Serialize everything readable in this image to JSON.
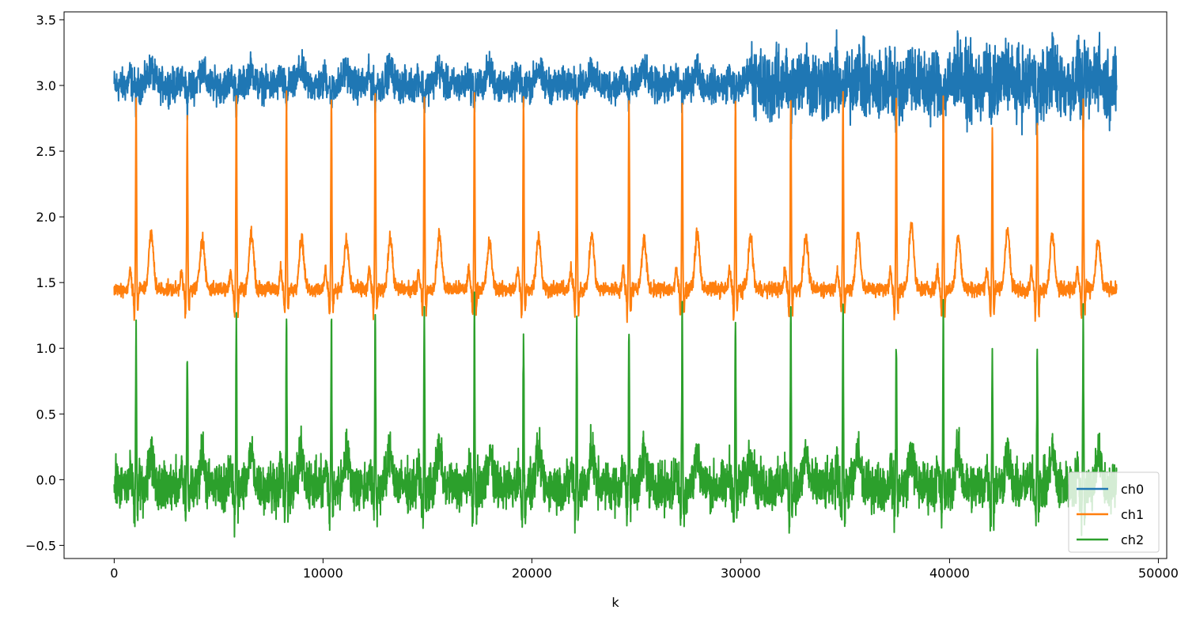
{
  "chart_data": {
    "type": "line",
    "title": "",
    "xlabel": "k",
    "ylabel": "",
    "xlim": [
      -2400,
      50400
    ],
    "ylim": [
      -0.6,
      3.56
    ],
    "xticks": [
      0,
      10000,
      20000,
      30000,
      40000,
      50000
    ],
    "xtick_labels": [
      "0",
      "10000",
      "20000",
      "30000",
      "40000",
      "50000"
    ],
    "yticks": [
      -0.5,
      0.0,
      0.5,
      1.0,
      1.5,
      2.0,
      2.5,
      3.0,
      3.5
    ],
    "ytick_labels": [
      "−0.5",
      "0.0",
      "0.5",
      "1.0",
      "1.5",
      "2.0",
      "2.5",
      "3.0",
      "3.5"
    ],
    "grid": false,
    "legend_position": "lower-right",
    "n_samples": 48000,
    "beat_positions": [
      1050,
      3500,
      5850,
      8250,
      10400,
      12500,
      14850,
      17250,
      19600,
      22150,
      24650,
      27200,
      29750,
      32400,
      34900,
      37450,
      39700,
      42050,
      44200,
      46400
    ],
    "series": [
      {
        "name": "ch0",
        "color": "#1f77b4",
        "baseline": 3.0,
        "noise_amplitude": 0.07,
        "noisy_region": [
          30500,
          48000
        ],
        "noisy_amplitude": 0.15,
        "peak_max": 3.37,
        "min": 2.53,
        "beat_r_dip": 2.85,
        "t_wave_height": 3.14
      },
      {
        "name": "ch1",
        "color": "#ff7f0e",
        "baseline": 1.45,
        "noise_amplitude": 0.03,
        "beat_peaks": [
          2.87,
          2.75,
          2.93,
          2.92,
          2.92,
          2.93,
          2.93,
          2.92,
          2.92,
          2.92,
          2.9,
          2.92,
          2.92,
          2.92,
          2.96,
          2.92,
          2.92,
          2.67,
          2.72,
          2.9
        ],
        "t_wave_heights": [
          1.87,
          1.84,
          1.87,
          1.84,
          1.81,
          1.83,
          1.86,
          1.8,
          1.85,
          1.86,
          1.82,
          1.87,
          1.84,
          1.84,
          1.87,
          1.96,
          1.86,
          1.91,
          1.86,
          1.81
        ],
        "min": 1.16
      },
      {
        "name": "ch2",
        "color": "#2ca02c",
        "baseline": -0.05,
        "noise_amplitude": 0.1,
        "beat_peaks": [
          1.2,
          0.98,
          1.28,
          1.26,
          1.17,
          1.35,
          1.22,
          1.27,
          1.17,
          1.2,
          1.24,
          1.34,
          1.2,
          1.37,
          1.35,
          1.15,
          1.23,
          1.04,
          1.1,
          1.3
        ],
        "min": -0.41
      }
    ]
  }
}
